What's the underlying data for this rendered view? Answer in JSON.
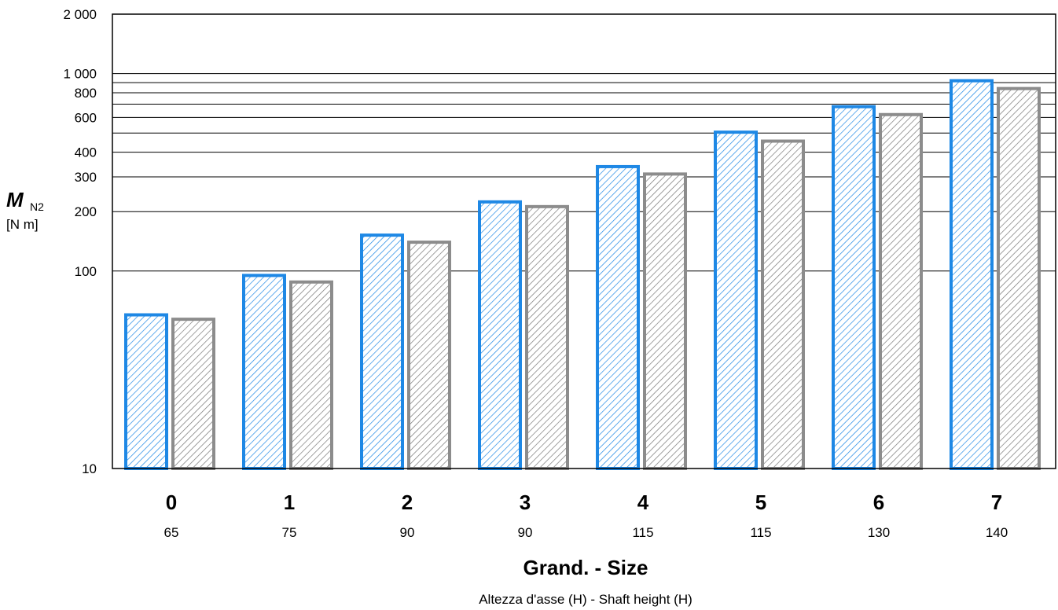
{
  "chart_data": {
    "type": "bar",
    "yscale": "log",
    "ylim": [
      10,
      2000
    ],
    "yticks": [
      {
        "value": 10,
        "label": "10"
      },
      {
        "value": 100,
        "label": "100"
      },
      {
        "value": 200,
        "label": "200"
      },
      {
        "value": 300,
        "label": "300"
      },
      {
        "value": 400,
        "label": "400"
      },
      {
        "value": 600,
        "label": "600"
      },
      {
        "value": 800,
        "label": "800"
      },
      {
        "value": 1000,
        "label": "1 000"
      },
      {
        "value": 2000,
        "label": "2 000"
      }
    ],
    "gridlines": [
      100,
      200,
      300,
      400,
      500,
      600,
      700,
      800,
      900,
      1000
    ],
    "categories": [
      "0",
      "1",
      "2",
      "3",
      "4",
      "5",
      "6",
      "7"
    ],
    "sub_categories": [
      "65",
      "75",
      "90",
      "90",
      "115",
      "115",
      "130",
      "140"
    ],
    "series": [
      {
        "color": "#1e88e5",
        "values": [
          60,
          95,
          152,
          224,
          338,
          505,
          680,
          920
        ]
      },
      {
        "color": "#8c8c8c",
        "values": [
          57,
          88,
          140,
          212,
          310,
          455,
          620,
          840
        ]
      }
    ],
    "ylabel": "M",
    "ylabel_sub": "N2",
    "ylabel_unit": "[N m]",
    "xlabel": "Grand. - Size",
    "xlabel_sub": "Altezza d'asse (H) - Shaft height (H)"
  }
}
